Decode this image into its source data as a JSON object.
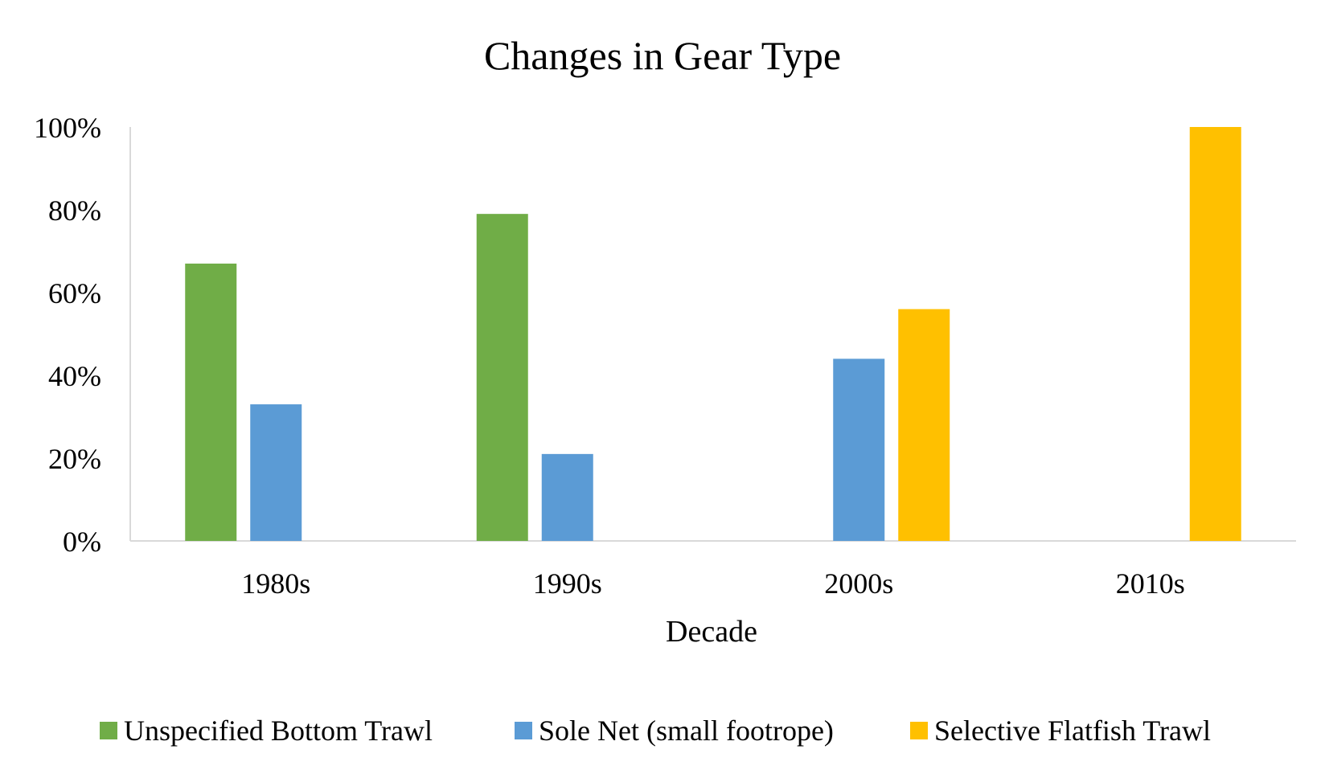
{
  "chart_data": {
    "type": "bar",
    "title": "Changes in Gear Type",
    "xlabel": "Decade",
    "ylabel": "",
    "categories": [
      "1980s",
      "1990s",
      "2000s",
      "2010s"
    ],
    "y_ticks": [
      "0%",
      "20%",
      "40%",
      "60%",
      "80%",
      "100%"
    ],
    "ylim": [
      0,
      100
    ],
    "grid": false,
    "legend_position": "bottom",
    "series": [
      {
        "name": "Unspecified Bottom Trawl",
        "color": "#70AD47",
        "values": [
          67,
          79,
          0,
          0
        ]
      },
      {
        "name": "Sole Net (small footrope)",
        "color": "#5B9BD5",
        "values": [
          33,
          21,
          44,
          0
        ]
      },
      {
        "name": "Selective Flatfish Trawl",
        "color": "#FFC000",
        "values": [
          0,
          0,
          56,
          100
        ]
      }
    ]
  }
}
